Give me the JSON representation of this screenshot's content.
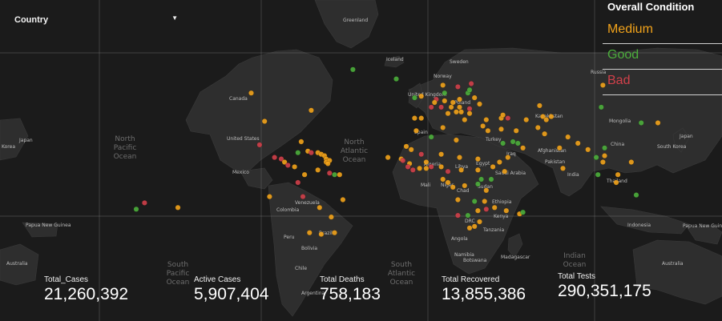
{
  "filter": {
    "label": "Country"
  },
  "legend": {
    "title": "Overall Condition",
    "items": [
      {
        "label": "Medium",
        "color": "#f2a31b"
      },
      {
        "label": "Good",
        "color": "#4caf3c"
      },
      {
        "label": "Bad",
        "color": "#d0404a"
      }
    ]
  },
  "stats": [
    {
      "label": "Total_Cases",
      "value": "21,260,392"
    },
    {
      "label": "Active Cases",
      "value": "5,907,404"
    },
    {
      "label": "Total Deaths",
      "value": "758,183"
    },
    {
      "label": "Total Recovered",
      "value": "13,855,386"
    },
    {
      "label": "Total Tests",
      "value": "290,351,175"
    }
  ],
  "map_labels": {
    "greenland": "Greenland",
    "iceland": "Iceland",
    "sweden": "Sweden",
    "norway": "Norway",
    "united_kingdom": "United Kingdom",
    "poland": "Poland",
    "russia": "Russia",
    "kazakhstan": "Kazakhstan",
    "mongolia": "Mongolia",
    "china": "China",
    "japan_east": "Japan",
    "japan_west": "Japan",
    "korea_west": "Korea",
    "south_korea": "South Korea",
    "canada": "Canada",
    "united_states": "United States",
    "mexico": "Mexico",
    "venezuela": "Venezuela",
    "colombia": "Colombia",
    "peru": "Peru",
    "brazil": "Brazil",
    "bolivia": "Bolivia",
    "chile": "Chile",
    "argentina": "Argentina",
    "spain": "Spain",
    "turkey": "Turkey",
    "afghanistan": "Afghanistan",
    "pakistan": "Pakistan",
    "india": "India",
    "thailand": "Thailand",
    "iraq": "Iraq",
    "saudi_arabia": "Saudi Arabia",
    "algeria": "Algeria",
    "libya": "Libya",
    "egypt": "Egypt",
    "mali": "Mali",
    "niger": "Niger",
    "chad": "Chad",
    "sudan": "Sudan",
    "ethiopia": "Ethiopia",
    "kenya": "Kenya",
    "drc": "DRC",
    "tanzania": "Tanzania",
    "angola": "Angola",
    "namibia": "Namibia",
    "botswana": "Botswana",
    "madagascar": "Madagascar",
    "indonesia": "Indonesia",
    "papua_new_guinea": "Papua New Guinea",
    "papua_new_guinea_west": "Papua New Guinea",
    "australia_east": "Australia",
    "australia_west": "Australia",
    "north_pacific": "North Pacific Ocean",
    "north_atlantic": "North Atlantic Ocean",
    "south_pacific": "South Pacific Ocean",
    "south_atlantic": "South Atlantic Ocean",
    "indian_ocean": "Indian Ocean"
  },
  "markers": [
    {
      "lon": -45,
      "lat": 71,
      "c": "G"
    },
    {
      "lon": -19,
      "lat": 65,
      "c": "G"
    },
    {
      "lon": -106,
      "lat": 56,
      "c": "M"
    },
    {
      "lon": -98,
      "lat": 38,
      "c": "M"
    },
    {
      "lon": -70,
      "lat": 45,
      "c": "M"
    },
    {
      "lon": -101,
      "lat": 23,
      "c": "B"
    },
    {
      "lon": -92,
      "lat": 15,
      "c": "B"
    },
    {
      "lon": -88,
      "lat": 14,
      "c": "B"
    },
    {
      "lon": -86,
      "lat": 12,
      "c": "M"
    },
    {
      "lon": -84,
      "lat": 10,
      "c": "B"
    },
    {
      "lon": -80,
      "lat": 9,
      "c": "M"
    },
    {
      "lon": -78,
      "lat": 18,
      "c": "G"
    },
    {
      "lon": -76,
      "lat": 25,
      "c": "M"
    },
    {
      "lon": -72,
      "lat": 19,
      "c": "M"
    },
    {
      "lon": -70,
      "lat": 18,
      "c": "B"
    },
    {
      "lon": -66,
      "lat": 18,
      "c": "M"
    },
    {
      "lon": -64,
      "lat": 17,
      "c": "M"
    },
    {
      "lon": -62,
      "lat": 16,
      "c": "M"
    },
    {
      "lon": -61,
      "lat": 14,
      "c": "M"
    },
    {
      "lon": -61,
      "lat": 12,
      "c": "M"
    },
    {
      "lon": -59,
      "lat": 13,
      "c": "M"
    },
    {
      "lon": -60,
      "lat": 11,
      "c": "M"
    },
    {
      "lon": -74,
      "lat": 4,
      "c": "M"
    },
    {
      "lon": -66,
      "lat": 7,
      "c": "M"
    },
    {
      "lon": -59,
      "lat": 5,
      "c": "B"
    },
    {
      "lon": -56,
      "lat": 4,
      "c": "G"
    },
    {
      "lon": -53,
      "lat": 4,
      "c": "M"
    },
    {
      "lon": -78,
      "lat": -1,
      "c": "B"
    },
    {
      "lon": -75,
      "lat": -10,
      "c": "B"
    },
    {
      "lon": -65,
      "lat": -17,
      "c": "M"
    },
    {
      "lon": -51,
      "lat": -12,
      "c": "M"
    },
    {
      "lon": -58,
      "lat": -23,
      "c": "M"
    },
    {
      "lon": -71,
      "lat": -33,
      "c": "M"
    },
    {
      "lon": -64,
      "lat": -34,
      "c": "M"
    },
    {
      "lon": -56,
      "lat": -33,
      "c": "M"
    },
    {
      "lon": -95,
      "lat": -10,
      "c": "M"
    },
    {
      "lon": -170,
      "lat": -14,
      "c": "B"
    },
    {
      "lon": -175,
      "lat": -18,
      "c": "G"
    },
    {
      "lon": -150,
      "lat": -17,
      "c": "M"
    },
    {
      "lon": -4,
      "lat": 54,
      "c": "M"
    },
    {
      "lon": -8,
      "lat": 53,
      "c": "G"
    },
    {
      "lon": 2,
      "lat": 47,
      "c": "B"
    },
    {
      "lon": -4,
      "lat": 40,
      "c": "M"
    },
    {
      "lon": -8,
      "lat": 40,
      "c": "M"
    },
    {
      "lon": 10,
      "lat": 51,
      "c": "M"
    },
    {
      "lon": 5,
      "lat": 52,
      "c": "B"
    },
    {
      "lon": 4,
      "lat": 50,
      "c": "M"
    },
    {
      "lon": 8,
      "lat": 47,
      "c": "B"
    },
    {
      "lon": 12,
      "lat": 43,
      "c": "M"
    },
    {
      "lon": 14,
      "lat": 47,
      "c": "M"
    },
    {
      "lon": 15,
      "lat": 50,
      "c": "M"
    },
    {
      "lon": 19,
      "lat": 52,
      "c": "M"
    },
    {
      "lon": 18,
      "lat": 60,
      "c": "B"
    },
    {
      "lon": 9,
      "lat": 61,
      "c": "M"
    },
    {
      "lon": 26,
      "lat": 62,
      "c": "B"
    },
    {
      "lon": 10,
      "lat": 56,
      "c": "G"
    },
    {
      "lon": 24,
      "lat": 56,
      "c": "G"
    },
    {
      "lon": 25,
      "lat": 58,
      "c": "G"
    },
    {
      "lon": 28,
      "lat": 53,
      "c": "M"
    },
    {
      "lon": 31,
      "lat": 49,
      "c": "M"
    },
    {
      "lon": 25,
      "lat": 46,
      "c": "B"
    },
    {
      "lon": 19,
      "lat": 47,
      "c": "M"
    },
    {
      "lon": 20,
      "lat": 44,
      "c": "M"
    },
    {
      "lon": 17,
      "lat": 44,
      "c": "M"
    },
    {
      "lon": 22,
      "lat": 39,
      "c": "M"
    },
    {
      "lon": 25,
      "lat": 43,
      "c": "M"
    },
    {
      "lon": 33,
      "lat": 35,
      "c": "M"
    },
    {
      "lon": 35,
      "lat": 39,
      "c": "M"
    },
    {
      "lon": 44,
      "lat": 40,
      "c": "M"
    },
    {
      "lon": 45,
      "lat": 42,
      "c": "M"
    },
    {
      "lon": 48,
      "lat": 40,
      "c": "B"
    },
    {
      "lon": 36,
      "lat": 32,
      "c": "M"
    },
    {
      "lon": 44,
      "lat": 33,
      "c": "M"
    },
    {
      "lon": 53,
      "lat": 32,
      "c": "M"
    },
    {
      "lon": 45,
      "lat": 24,
      "c": "G"
    },
    {
      "lon": 51,
      "lat": 25,
      "c": "G"
    },
    {
      "lon": 54,
      "lat": 24,
      "c": "G"
    },
    {
      "lon": 57,
      "lat": 21,
      "c": "M"
    },
    {
      "lon": 48,
      "lat": 15,
      "c": "M"
    },
    {
      "lon": 67,
      "lat": 48,
      "c": "M"
    },
    {
      "lon": 74,
      "lat": 41,
      "c": "M"
    },
    {
      "lon": 69,
      "lat": 41,
      "c": "M"
    },
    {
      "lon": 71,
      "lat": 39,
      "c": "M"
    },
    {
      "lon": 59,
      "lat": 39,
      "c": "M"
    },
    {
      "lon": 66,
      "lat": 34,
      "c": "M"
    },
    {
      "lon": 70,
      "lat": 30,
      "c": "M"
    },
    {
      "lon": 79,
      "lat": 21,
      "c": "M"
    },
    {
      "lon": 84,
      "lat": 28,
      "c": "M"
    },
    {
      "lon": 90,
      "lat": 24,
      "c": "M"
    },
    {
      "lon": 81,
      "lat": 8,
      "c": "M"
    },
    {
      "lon": 96,
      "lat": 20,
      "c": "M"
    },
    {
      "lon": 101,
      "lat": 15,
      "c": "G"
    },
    {
      "lon": 106,
      "lat": 16,
      "c": "M"
    },
    {
      "lon": 105,
      "lat": 12,
      "c": "M"
    },
    {
      "lon": 106,
      "lat": 21,
      "c": "G"
    },
    {
      "lon": 102,
      "lat": 4,
      "c": "G"
    },
    {
      "lon": 114,
      "lat": 4,
      "c": "M"
    },
    {
      "lon": 122,
      "lat": 12,
      "c": "M"
    },
    {
      "lon": 113,
      "lat": -1,
      "c": "M"
    },
    {
      "lon": 125,
      "lat": -9,
      "c": "G"
    },
    {
      "lon": 104,
      "lat": 47,
      "c": "G"
    },
    {
      "lon": 105,
      "lat": 61,
      "c": "M"
    },
    {
      "lon": 128,
      "lat": 37,
      "c": "G"
    },
    {
      "lon": 138,
      "lat": 37,
      "c": "M"
    },
    {
      "lon": 2,
      "lat": 28,
      "c": "G"
    },
    {
      "lon": 9,
      "lat": 34,
      "c": "M"
    },
    {
      "lon": -7,
      "lat": 32,
      "c": "M"
    },
    {
      "lon": 17,
      "lat": 26,
      "c": "M"
    },
    {
      "lon": -13,
      "lat": 22,
      "c": "M"
    },
    {
      "lon": -10,
      "lat": 20,
      "c": "M"
    },
    {
      "lon": -4,
      "lat": 17,
      "c": "B"
    },
    {
      "lon": 8,
      "lat": 17,
      "c": "M"
    },
    {
      "lon": 19,
      "lat": 15,
      "c": "M"
    },
    {
      "lon": 30,
      "lat": 14,
      "c": "M"
    },
    {
      "lon": -16,
      "lat": 14,
      "c": "M"
    },
    {
      "lon": -15,
      "lat": 13,
      "c": "B"
    },
    {
      "lon": -11,
      "lat": 11,
      "c": "M"
    },
    {
      "lon": -12,
      "lat": 9,
      "c": "B"
    },
    {
      "lon": -9,
      "lat": 7,
      "c": "B"
    },
    {
      "lon": -5,
      "lat": 8,
      "c": "M"
    },
    {
      "lon": -1,
      "lat": 12,
      "c": "M"
    },
    {
      "lon": -1,
      "lat": 8,
      "c": "M"
    },
    {
      "lon": 2,
      "lat": 9,
      "c": "B"
    },
    {
      "lon": 8,
      "lat": 9,
      "c": "M"
    },
    {
      "lon": 12,
      "lat": 6,
      "c": "B"
    },
    {
      "lon": 20,
      "lat": 7,
      "c": "M"
    },
    {
      "lon": 30,
      "lat": 7,
      "c": "M"
    },
    {
      "lon": 39,
      "lat": 9,
      "c": "M"
    },
    {
      "lon": 43,
      "lat": 12,
      "c": "M"
    },
    {
      "lon": 46,
      "lat": 6,
      "c": "M"
    },
    {
      "lon": 38,
      "lat": 1,
      "c": "G"
    },
    {
      "lon": 32,
      "lat": 1,
      "c": "G"
    },
    {
      "lon": 30,
      "lat": -2,
      "c": "G"
    },
    {
      "lon": 22,
      "lat": -3,
      "c": "M"
    },
    {
      "lon": 12,
      "lat": -1,
      "c": "M"
    },
    {
      "lon": 15,
      "lat": -4,
      "c": "M"
    },
    {
      "lon": 35,
      "lat": -6,
      "c": "M"
    },
    {
      "lon": 18,
      "lat": -12,
      "c": "M"
    },
    {
      "lon": 28,
      "lat": -13,
      "c": "G"
    },
    {
      "lon": 34,
      "lat": -13,
      "c": "M"
    },
    {
      "lon": 35,
      "lat": -18,
      "c": "B"
    },
    {
      "lon": 30,
      "lat": -19,
      "c": "M"
    },
    {
      "lon": 18,
      "lat": -22,
      "c": "B"
    },
    {
      "lon": 24,
      "lat": -22,
      "c": "G"
    },
    {
      "lon": 25,
      "lat": -30,
      "c": "M"
    },
    {
      "lon": 28,
      "lat": -29,
      "c": "M"
    },
    {
      "lon": 31,
      "lat": -26,
      "c": "M"
    },
    {
      "lon": 47,
      "lat": -19,
      "c": "M"
    },
    {
      "lon": 55,
      "lat": -21,
      "c": "M"
    },
    {
      "lon": 57,
      "lat": -20,
      "c": "G"
    },
    {
      "lon": 40,
      "lat": -17,
      "c": "M"
    },
    {
      "lon": 9,
      "lat": 1,
      "c": "M"
    },
    {
      "lon": -24,
      "lat": 15,
      "c": "M"
    }
  ]
}
